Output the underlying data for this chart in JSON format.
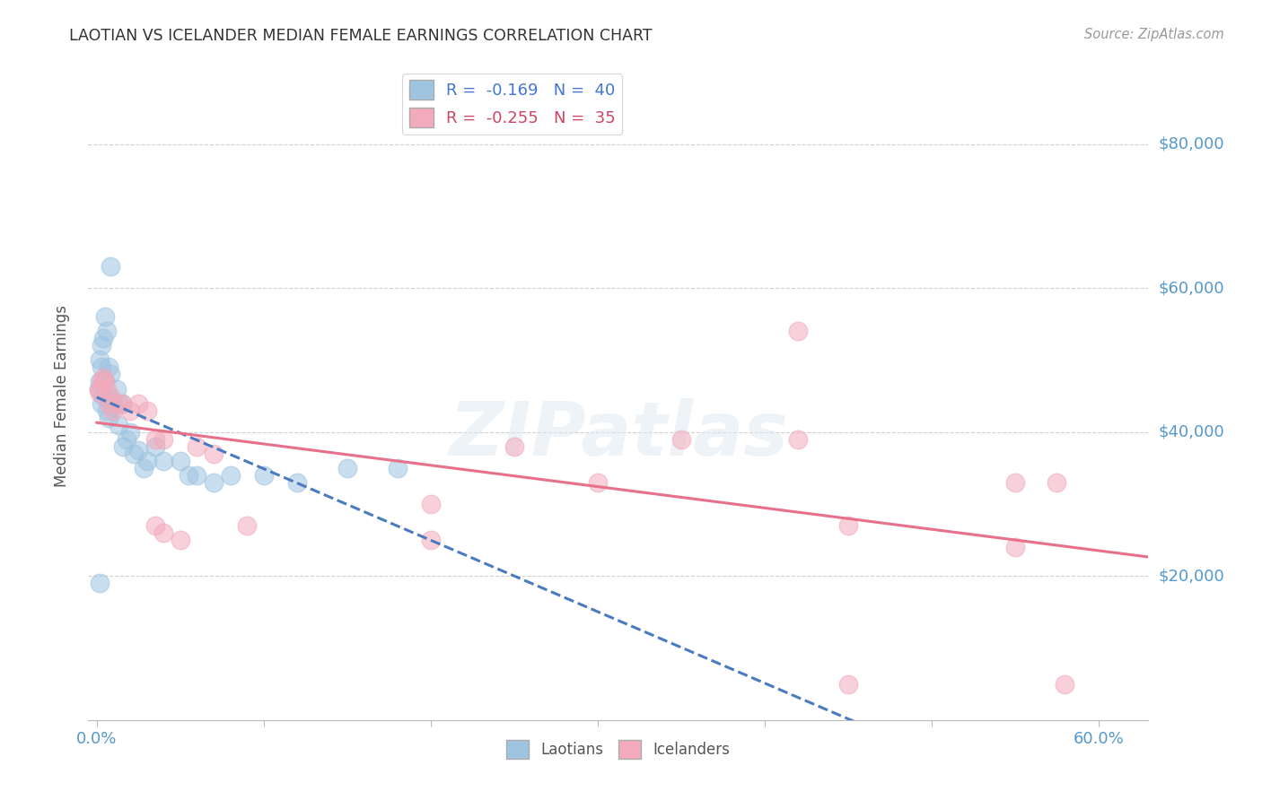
{
  "title": "LAOTIAN VS ICELANDER MEDIAN FEMALE EARNINGS CORRELATION CHART",
  "source": "Source: ZipAtlas.com",
  "ylabel": "Median Female Earnings",
  "ytick_labels": [
    "$20,000",
    "$40,000",
    "$60,000",
    "$80,000"
  ],
  "ytick_vals": [
    20000,
    40000,
    60000,
    80000
  ],
  "ylim": [
    0,
    90000
  ],
  "xlim": [
    -0.005,
    0.63
  ],
  "xticks": [
    0.0,
    0.1,
    0.2,
    0.3,
    0.4,
    0.5,
    0.6
  ],
  "xlabel_show": {
    "0.0": "0.0%",
    "0.6": "60.0%"
  },
  "watermark": "ZIPatlas",
  "legend_blue_r": "-0.169",
  "legend_blue_n": "40",
  "legend_pink_r": "-0.255",
  "legend_pink_n": "35",
  "blue_color": "#9ec4e0",
  "pink_color": "#f2aabc",
  "blue_line_color": "#4a7abf",
  "pink_line_color": "#e8708a",
  "blue_scatter": [
    [
      0.001,
      46000
    ],
    [
      0.002,
      47000
    ],
    [
      0.003,
      44000
    ],
    [
      0.003,
      49000
    ],
    [
      0.004,
      45000
    ],
    [
      0.004,
      53000
    ],
    [
      0.005,
      47000
    ],
    [
      0.005,
      56000
    ],
    [
      0.006,
      43000
    ],
    [
      0.006,
      54000
    ],
    [
      0.007,
      42000
    ],
    [
      0.007,
      49000
    ],
    [
      0.008,
      48000
    ],
    [
      0.008,
      63000
    ],
    [
      0.009,
      44500
    ],
    [
      0.01,
      43500
    ],
    [
      0.012,
      46000
    ],
    [
      0.013,
      41000
    ],
    [
      0.015,
      44000
    ],
    [
      0.016,
      38000
    ],
    [
      0.018,
      39000
    ],
    [
      0.02,
      40000
    ],
    [
      0.022,
      37000
    ],
    [
      0.025,
      37500
    ],
    [
      0.028,
      35000
    ],
    [
      0.03,
      36000
    ],
    [
      0.035,
      38000
    ],
    [
      0.04,
      36000
    ],
    [
      0.05,
      36000
    ],
    [
      0.055,
      34000
    ],
    [
      0.06,
      34000
    ],
    [
      0.07,
      33000
    ],
    [
      0.08,
      34000
    ],
    [
      0.1,
      34000
    ],
    [
      0.12,
      33000
    ],
    [
      0.15,
      35000
    ],
    [
      0.002,
      50000
    ],
    [
      0.003,
      52000
    ],
    [
      0.002,
      19000
    ],
    [
      0.18,
      35000
    ]
  ],
  "pink_scatter": [
    [
      0.001,
      46000
    ],
    [
      0.002,
      45500
    ],
    [
      0.003,
      47000
    ],
    [
      0.004,
      47500
    ],
    [
      0.005,
      47000
    ],
    [
      0.006,
      46000
    ],
    [
      0.007,
      44000
    ],
    [
      0.008,
      45000
    ],
    [
      0.01,
      43000
    ],
    [
      0.013,
      44000
    ],
    [
      0.015,
      44000
    ],
    [
      0.02,
      43000
    ],
    [
      0.025,
      44000
    ],
    [
      0.03,
      43000
    ],
    [
      0.035,
      39000
    ],
    [
      0.035,
      27000
    ],
    [
      0.04,
      39000
    ],
    [
      0.04,
      26000
    ],
    [
      0.05,
      25000
    ],
    [
      0.06,
      38000
    ],
    [
      0.07,
      37000
    ],
    [
      0.09,
      27000
    ],
    [
      0.2,
      30000
    ],
    [
      0.2,
      25000
    ],
    [
      0.25,
      38000
    ],
    [
      0.3,
      33000
    ],
    [
      0.35,
      39000
    ],
    [
      0.42,
      39000
    ],
    [
      0.42,
      54000
    ],
    [
      0.45,
      27000
    ],
    [
      0.45,
      5000
    ],
    [
      0.55,
      33000
    ],
    [
      0.55,
      24000
    ],
    [
      0.575,
      33000
    ],
    [
      0.58,
      5000
    ]
  ],
  "background_color": "#ffffff",
  "grid_color": "#d0d0d0"
}
